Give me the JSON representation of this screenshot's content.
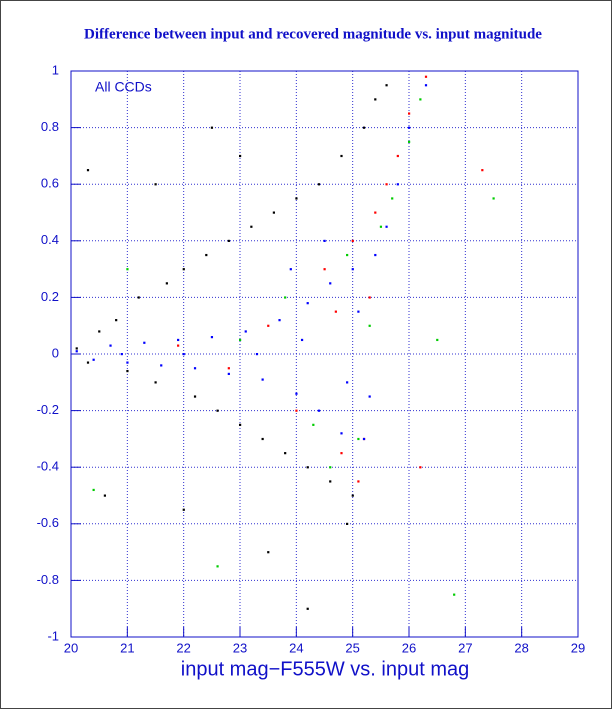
{
  "chart_data": {
    "type": "scatter",
    "title": "Difference between input and recovered magnitude vs. input magnitude",
    "x_label": "input mag−F555W vs. input mag",
    "annotation": "All CCDs",
    "xlim": [
      20,
      29
    ],
    "ylim": [
      -1,
      1
    ],
    "xticks": [
      20,
      21,
      22,
      23,
      24,
      25,
      26,
      27,
      28,
      29
    ],
    "yticks": [
      -1,
      -0.8,
      -0.6,
      -0.4,
      -0.2,
      0,
      0.2,
      0.4,
      0.6,
      0.8,
      1
    ],
    "grid": true,
    "series": [
      {
        "color": "#000000",
        "x": [
          20.1,
          20.3,
          20.5,
          20.8,
          21.0,
          21.2,
          21.5,
          21.7,
          22.0,
          22.2,
          22.4,
          22.6,
          22.8,
          23.0,
          23.2,
          23.4,
          23.6,
          23.8,
          24.0,
          24.2,
          24.4,
          24.6,
          24.8,
          25.0,
          25.2,
          25.4,
          25.6,
          21.5,
          22.5,
          23.5,
          24.2,
          20.3,
          23.0,
          24.9,
          22.0,
          20.6
        ],
        "y": [
          0.02,
          -0.03,
          0.08,
          0.12,
          -0.06,
          0.2,
          -0.1,
          0.25,
          0.3,
          -0.15,
          0.35,
          -0.2,
          0.4,
          -0.25,
          0.45,
          -0.3,
          0.5,
          -0.35,
          0.55,
          -0.4,
          0.6,
          -0.45,
          0.7,
          -0.5,
          0.8,
          0.9,
          0.95,
          0.6,
          0.8,
          -0.7,
          -0.9,
          0.65,
          0.7,
          -0.6,
          -0.55,
          -0.5
        ]
      },
      {
        "color": "#ff0000",
        "x": [
          23.5,
          24.0,
          24.5,
          24.8,
          25.0,
          25.2,
          25.4,
          25.6,
          25.8,
          26.0,
          25.3,
          24.7,
          26.3,
          27.3,
          26.2,
          25.1,
          22.8,
          21.9
        ],
        "y": [
          0.1,
          -0.2,
          0.3,
          -0.35,
          0.4,
          -0.3,
          0.5,
          0.6,
          0.7,
          0.85,
          0.2,
          0.15,
          0.98,
          0.65,
          -0.4,
          -0.45,
          -0.05,
          0.03
        ]
      },
      {
        "color": "#00cc00",
        "x": [
          23.0,
          23.8,
          24.3,
          24.9,
          25.1,
          25.5,
          25.7,
          26.0,
          26.2,
          24.6,
          27.5,
          26.8,
          20.4,
          22.6,
          25.3,
          21.0,
          26.5
        ],
        "y": [
          0.05,
          0.2,
          -0.25,
          0.35,
          -0.3,
          0.45,
          0.55,
          0.75,
          0.9,
          -0.4,
          0.55,
          -0.85,
          -0.48,
          -0.75,
          0.1,
          0.3,
          0.05
        ]
      },
      {
        "color": "#0000ff",
        "x": [
          20.1,
          20.4,
          20.7,
          21.0,
          21.3,
          21.6,
          21.9,
          22.2,
          22.5,
          22.8,
          23.1,
          23.4,
          23.7,
          24.0,
          24.2,
          24.4,
          24.6,
          24.8,
          25.0,
          25.2,
          25.4,
          25.6,
          25.8,
          26.0,
          23.9,
          24.5,
          25.1,
          24.9,
          23.3,
          22.0,
          20.9,
          25.3,
          24.1,
          26.3
        ],
        "y": [
          0.01,
          -0.02,
          0.03,
          -0.03,
          0.04,
          -0.04,
          0.05,
          -0.05,
          0.06,
          -0.07,
          0.08,
          -0.09,
          0.12,
          -0.14,
          0.18,
          -0.2,
          0.25,
          -0.28,
          0.3,
          -0.3,
          0.35,
          0.45,
          0.6,
          0.8,
          0.3,
          0.4,
          0.15,
          -0.1,
          0.0,
          0.0,
          0.0,
          -0.15,
          0.05,
          0.95
        ]
      }
    ]
  }
}
